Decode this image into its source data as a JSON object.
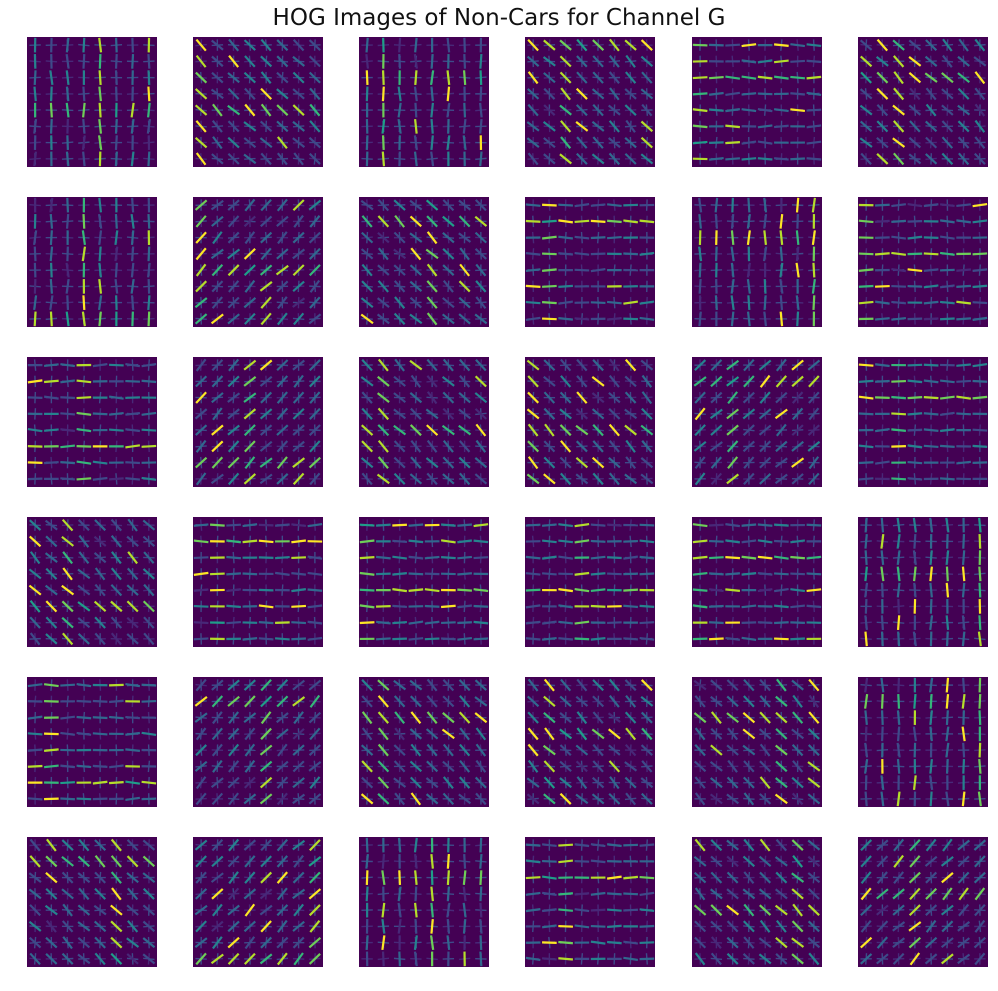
{
  "figure": {
    "title": "HOG Images of Non-Cars for Channel G"
  },
  "colors": {
    "background": "#ffffff",
    "tile_base": "#440154",
    "colormap": [
      "#440154",
      "#482878",
      "#3e4a89",
      "#31688e",
      "#26828e",
      "#1f9e89",
      "#35b779",
      "#6ece58",
      "#b5de2b",
      "#fde725"
    ]
  },
  "grid": {
    "rows": 6,
    "columns": 6
  }
}
